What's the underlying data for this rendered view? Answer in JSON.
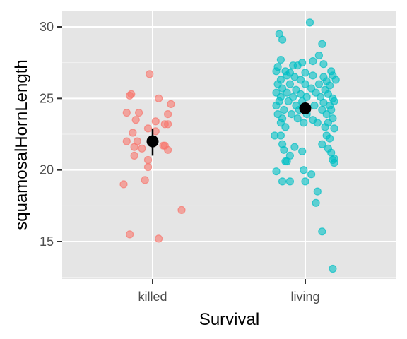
{
  "chart_data": {
    "type": "scatter",
    "title": "",
    "xlabel": "Survival",
    "ylabel": "squamosalHornLength",
    "categories": [
      "killed",
      "living"
    ],
    "ylim": [
      12.4,
      31.2
    ],
    "yticks": [
      15,
      20,
      25,
      30
    ],
    "grid": true,
    "legend": "none",
    "colors": {
      "panel": "#e5e5e5",
      "grid_major": "#ffffff",
      "grid_minor": "#f2f2f2",
      "killed": "#f8766d",
      "living": "#00bfc4",
      "summary": "#000000"
    },
    "series": [
      {
        "category": "killed",
        "points": [
          {
            "x": -0.02,
            "y": 26.7
          },
          {
            "x": -0.15,
            "y": 25.2
          },
          {
            "x": -0.14,
            "y": 25.3
          },
          {
            "x": 0.04,
            "y": 25.0
          },
          {
            "x": 0.12,
            "y": 24.6
          },
          {
            "x": -0.17,
            "y": 24.0
          },
          {
            "x": -0.09,
            "y": 24.0
          },
          {
            "x": 0.1,
            "y": 23.9
          },
          {
            "x": -0.11,
            "y": 23.5
          },
          {
            "x": 0.02,
            "y": 23.4
          },
          {
            "x": 0.08,
            "y": 23.2
          },
          {
            "x": 0.1,
            "y": 23.2
          },
          {
            "x": -0.03,
            "y": 22.9
          },
          {
            "x": -0.13,
            "y": 22.6
          },
          {
            "x": 0.02,
            "y": 22.7
          },
          {
            "x": -0.17,
            "y": 22.0
          },
          {
            "x": -0.1,
            "y": 22.0
          },
          {
            "x": -0.12,
            "y": 21.6
          },
          {
            "x": -0.07,
            "y": 21.5
          },
          {
            "x": 0.07,
            "y": 21.7
          },
          {
            "x": 0.08,
            "y": 21.7
          },
          {
            "x": 0.1,
            "y": 21.4
          },
          {
            "x": -0.12,
            "y": 21.0
          },
          {
            "x": -0.03,
            "y": 20.7
          },
          {
            "x": -0.03,
            "y": 20.2
          },
          {
            "x": -0.05,
            "y": 19.3
          },
          {
            "x": -0.19,
            "y": 19.0
          },
          {
            "x": 0.19,
            "y": 17.2
          },
          {
            "x": -0.15,
            "y": 15.5
          },
          {
            "x": 0.04,
            "y": 15.2
          }
        ],
        "mean": 22.0,
        "error": [
          21.0,
          22.9
        ]
      },
      {
        "category": "living",
        "points": [
          {
            "x": 0.03,
            "y": 30.3
          },
          {
            "x": -0.17,
            "y": 29.5
          },
          {
            "x": -0.15,
            "y": 29.1
          },
          {
            "x": 0.11,
            "y": 28.8
          },
          {
            "x": 0.09,
            "y": 28.0
          },
          {
            "x": -0.16,
            "y": 27.7
          },
          {
            "x": -0.02,
            "y": 27.5
          },
          {
            "x": 0.05,
            "y": 27.6
          },
          {
            "x": -0.18,
            "y": 27.2
          },
          {
            "x": -0.08,
            "y": 27.3
          },
          {
            "x": -0.05,
            "y": 27.3
          },
          {
            "x": 0.12,
            "y": 27.4
          },
          {
            "x": -0.19,
            "y": 26.9
          },
          {
            "x": -0.13,
            "y": 26.9
          },
          {
            "x": -0.1,
            "y": 26.8
          },
          {
            "x": 0.0,
            "y": 26.8
          },
          {
            "x": 0.17,
            "y": 26.9
          },
          {
            "x": -0.12,
            "y": 26.6
          },
          {
            "x": -0.07,
            "y": 26.5
          },
          {
            "x": 0.05,
            "y": 26.6
          },
          {
            "x": 0.12,
            "y": 26.5
          },
          {
            "x": 0.18,
            "y": 26.6
          },
          {
            "x": -0.16,
            "y": 26.3
          },
          {
            "x": -0.03,
            "y": 26.3
          },
          {
            "x": 0.14,
            "y": 26.2
          },
          {
            "x": 0.2,
            "y": 26.3
          },
          {
            "x": -0.18,
            "y": 26.0
          },
          {
            "x": -0.1,
            "y": 26.0
          },
          {
            "x": 0.0,
            "y": 26.0
          },
          {
            "x": 0.09,
            "y": 26.0
          },
          {
            "x": 0.16,
            "y": 25.9
          },
          {
            "x": -0.15,
            "y": 25.7
          },
          {
            "x": -0.06,
            "y": 25.6
          },
          {
            "x": 0.04,
            "y": 25.7
          },
          {
            "x": 0.13,
            "y": 25.6
          },
          {
            "x": -0.19,
            "y": 25.4
          },
          {
            "x": -0.12,
            "y": 25.4
          },
          {
            "x": -0.03,
            "y": 25.3
          },
          {
            "x": 0.07,
            "y": 25.4
          },
          {
            "x": 0.15,
            "y": 25.3
          },
          {
            "x": -0.16,
            "y": 25.1
          },
          {
            "x": -0.08,
            "y": 25.1
          },
          {
            "x": 0.01,
            "y": 25.1
          },
          {
            "x": 0.1,
            "y": 25.1
          },
          {
            "x": 0.18,
            "y": 25.0
          },
          {
            "x": -0.17,
            "y": 24.8
          },
          {
            "x": -0.11,
            "y": 24.8
          },
          {
            "x": -0.02,
            "y": 24.8
          },
          {
            "x": 0.12,
            "y": 24.7
          },
          {
            "x": 0.19,
            "y": 24.8
          },
          {
            "x": -0.19,
            "y": 24.5
          },
          {
            "x": -0.06,
            "y": 24.5
          },
          {
            "x": 0.06,
            "y": 24.5
          },
          {
            "x": 0.16,
            "y": 24.5
          },
          {
            "x": -0.14,
            "y": 24.2
          },
          {
            "x": -0.04,
            "y": 24.2
          },
          {
            "x": 0.11,
            "y": 24.2
          },
          {
            "x": 0.17,
            "y": 24.2
          },
          {
            "x": -0.18,
            "y": 23.9
          },
          {
            "x": -0.09,
            "y": 23.9
          },
          {
            "x": 0.01,
            "y": 23.9
          },
          {
            "x": 0.14,
            "y": 23.9
          },
          {
            "x": -0.15,
            "y": 23.6
          },
          {
            "x": -0.05,
            "y": 23.6
          },
          {
            "x": 0.05,
            "y": 23.5
          },
          {
            "x": 0.18,
            "y": 23.6
          },
          {
            "x": -0.16,
            "y": 23.3
          },
          {
            "x": -0.01,
            "y": 23.3
          },
          {
            "x": 0.08,
            "y": 23.3
          },
          {
            "x": 0.15,
            "y": 23.3
          },
          {
            "x": -0.13,
            "y": 23.0
          },
          {
            "x": 0.13,
            "y": 23.0
          },
          {
            "x": 0.19,
            "y": 22.9
          },
          {
            "x": -0.2,
            "y": 22.4
          },
          {
            "x": -0.16,
            "y": 22.4
          },
          {
            "x": 0.14,
            "y": 22.4
          },
          {
            "x": 0.16,
            "y": 22.2
          },
          {
            "x": 0.11,
            "y": 21.8
          },
          {
            "x": -0.15,
            "y": 21.8
          },
          {
            "x": -0.07,
            "y": 21.6
          },
          {
            "x": 0.15,
            "y": 21.5
          },
          {
            "x": -0.14,
            "y": 21.4
          },
          {
            "x": -0.02,
            "y": 21.3
          },
          {
            "x": 0.17,
            "y": 21.2
          },
          {
            "x": -0.1,
            "y": 21.0
          },
          {
            "x": 0.19,
            "y": 20.8
          },
          {
            "x": -0.13,
            "y": 20.6
          },
          {
            "x": -0.12,
            "y": 20.6
          },
          {
            "x": 0.18,
            "y": 20.7
          },
          {
            "x": 0.19,
            "y": 20.5
          },
          {
            "x": -0.19,
            "y": 19.9
          },
          {
            "x": -0.01,
            "y": 20.0
          },
          {
            "x": 0.04,
            "y": 19.7
          },
          {
            "x": -0.15,
            "y": 19.2
          },
          {
            "x": -0.1,
            "y": 19.2
          },
          {
            "x": 0.0,
            "y": 19.2
          },
          {
            "x": 0.08,
            "y": 18.5
          },
          {
            "x": 0.07,
            "y": 17.7
          },
          {
            "x": 0.11,
            "y": 15.7
          },
          {
            "x": 0.18,
            "y": 13.1
          }
        ],
        "mean": 24.3,
        "error": [
          24.0,
          24.6
        ]
      }
    ]
  }
}
